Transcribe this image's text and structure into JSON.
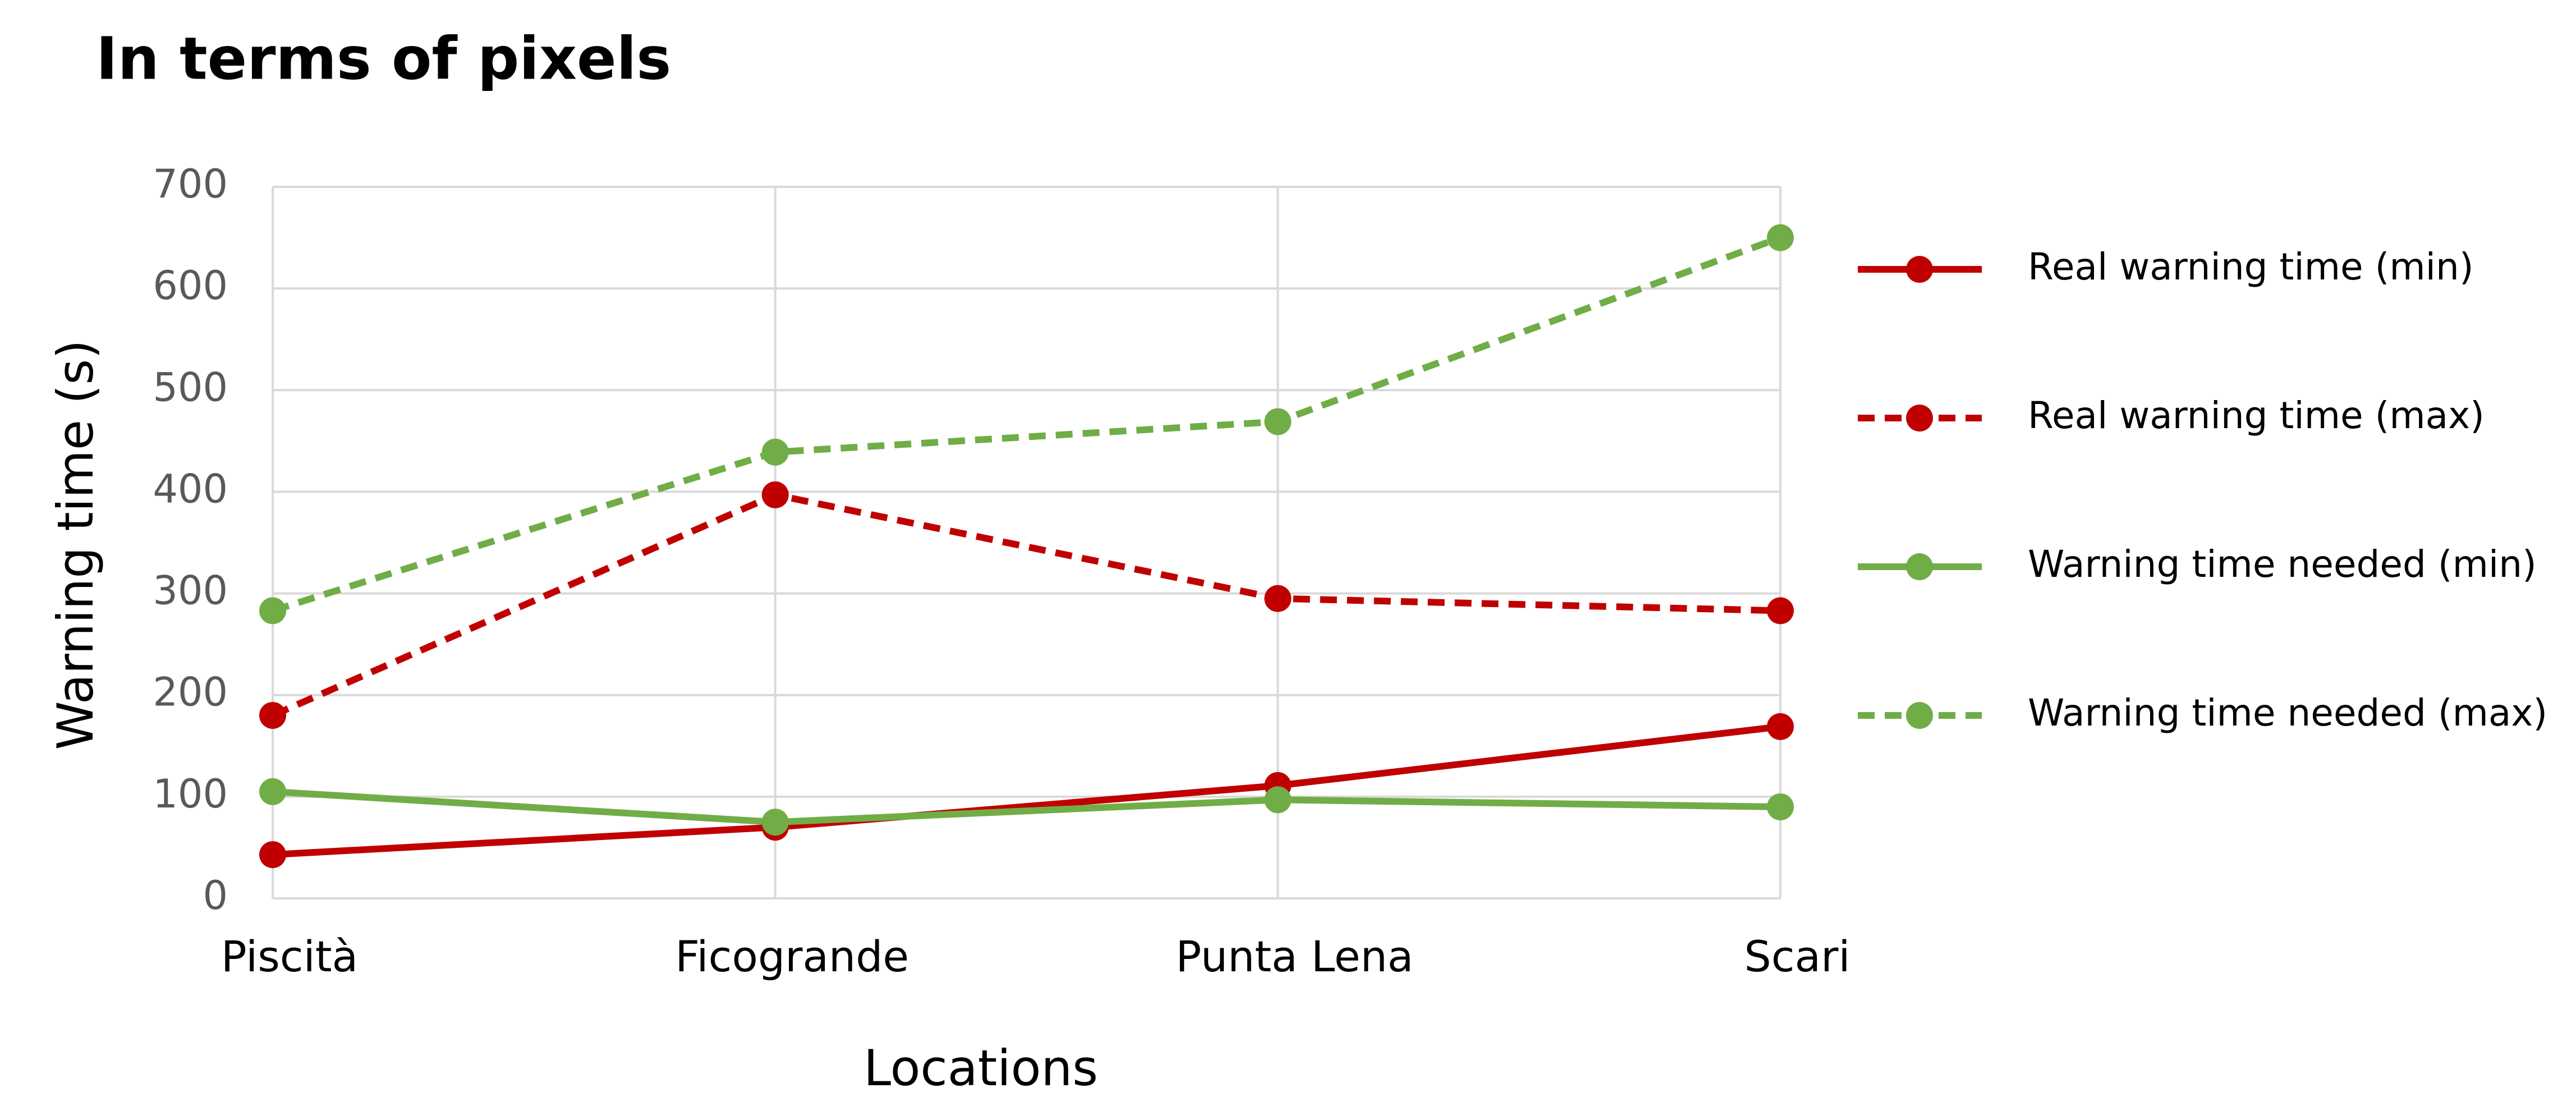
{
  "chart_data": {
    "type": "line",
    "title": "In terms of pixels",
    "x_label": "Locations",
    "y_label": "Warning time (s)",
    "categories": [
      "Piscità",
      "Ficogrande",
      "Punta Lena",
      "Scari"
    ],
    "series": [
      {
        "name": "Real warning time (min)",
        "color": "#c00000",
        "line_style": "solid",
        "values": [
          43,
          70,
          111,
          169
        ]
      },
      {
        "name": "Real warning time (max)",
        "color": "#c00000",
        "line_style": "dashed",
        "values": [
          180,
          397,
          295,
          283
        ]
      },
      {
        "name": "Warning time needed (min)",
        "color": "#70ad47",
        "line_style": "solid",
        "values": [
          105,
          75,
          97,
          90
        ]
      },
      {
        "name": "Warning time needed (max)",
        "color": "#70ad47",
        "line_style": "dashed",
        "values": [
          283,
          439,
          469,
          650
        ]
      }
    ],
    "ylim": [
      0,
      700
    ],
    "yticks": [
      0,
      100,
      200,
      300,
      400,
      500,
      600,
      700
    ],
    "grid": true,
    "legend": "right"
  }
}
